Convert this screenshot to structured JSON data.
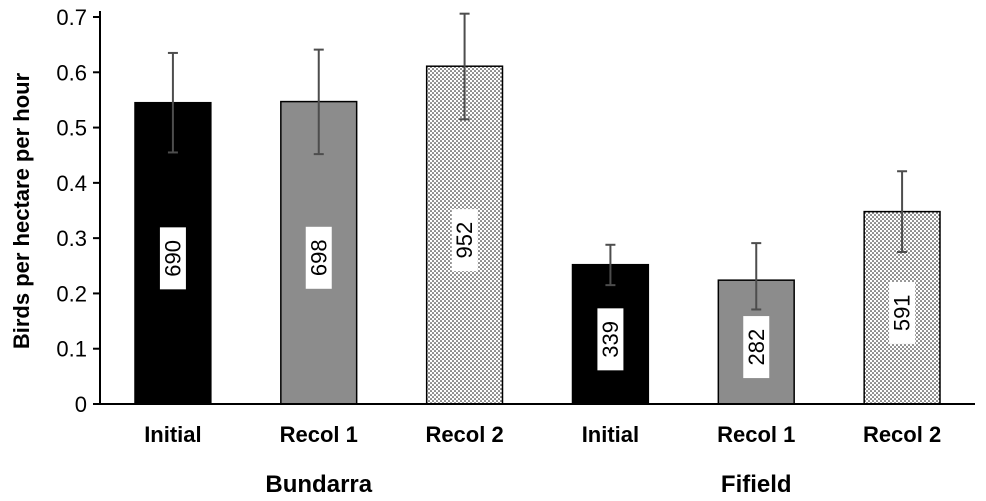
{
  "chart_data": {
    "type": "bar",
    "ylabel": "Birds per hectare per hour",
    "ylim": [
      0,
      0.7
    ],
    "yticks": [
      "0",
      "0.1",
      "0.2",
      "0.3",
      "0.4",
      "0.5",
      "0.6",
      "0.7"
    ],
    "grid": false,
    "groups": [
      {
        "name": "Bundarra",
        "bars": [
          {
            "category": "Initial",
            "value": 0.545,
            "error_low": 0.455,
            "error_high": 0.635,
            "count": "690",
            "fill": "solid-black"
          },
          {
            "category": "Recol 1",
            "value": 0.547,
            "error_low": 0.452,
            "error_high": 0.641,
            "count": "698",
            "fill": "solid-gray"
          },
          {
            "category": "Recol 2",
            "value": 0.611,
            "error_low": 0.515,
            "error_high": 0.706,
            "count": "952",
            "fill": "dotted"
          }
        ]
      },
      {
        "name": "Fifield",
        "bars": [
          {
            "category": "Initial",
            "value": 0.252,
            "error_low": 0.215,
            "error_high": 0.288,
            "count": "339",
            "fill": "solid-black"
          },
          {
            "category": "Recol 1",
            "value": 0.224,
            "error_low": 0.171,
            "error_high": 0.291,
            "count": "282",
            "fill": "solid-gray"
          },
          {
            "category": "Recol 2",
            "value": 0.348,
            "error_low": 0.275,
            "error_high": 0.421,
            "count": "591",
            "fill": "dotted"
          }
        ]
      }
    ],
    "colors": {
      "solid-black": "#000000",
      "solid-gray": "#8c8c8c",
      "dotted": "#ffffff",
      "error_bar": "#4d4d4d"
    }
  }
}
